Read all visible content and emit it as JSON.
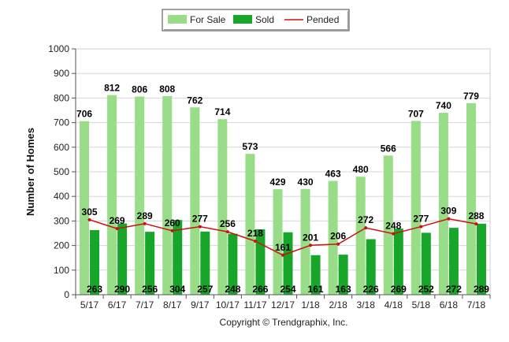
{
  "chart_data": {
    "type": "bar",
    "ylabel": "Number of Homes",
    "xlabel": "",
    "ylim": [
      0,
      1000
    ],
    "yticks": [
      0,
      100,
      200,
      300,
      400,
      500,
      600,
      700,
      800,
      900,
      1000
    ],
    "grid": true,
    "legend_position": "top-center",
    "categories": [
      "5/17",
      "6/17",
      "7/17",
      "8/17",
      "9/17",
      "10/17",
      "11/17",
      "12/17",
      "1/18",
      "2/18",
      "3/18",
      "4/18",
      "5/18",
      "6/18",
      "7/18"
    ],
    "series": [
      {
        "name": "For Sale",
        "kind": "bar",
        "color": "#99dd88",
        "values": [
          706,
          812,
          806,
          808,
          762,
          714,
          573,
          429,
          430,
          463,
          480,
          566,
          707,
          740,
          779
        ]
      },
      {
        "name": "Sold",
        "kind": "bar",
        "color": "#17a52a",
        "values": [
          263,
          290,
          256,
          304,
          257,
          248,
          266,
          254,
          161,
          163,
          226,
          269,
          252,
          272,
          289
        ]
      },
      {
        "name": "Pended",
        "kind": "line",
        "color": "#cc1111",
        "values": [
          305,
          269,
          289,
          260,
          277,
          256,
          218,
          161,
          201,
          206,
          272,
          248,
          277,
          309,
          288
        ]
      }
    ]
  },
  "copyright": "Copyright © Trendgraphix, Inc."
}
